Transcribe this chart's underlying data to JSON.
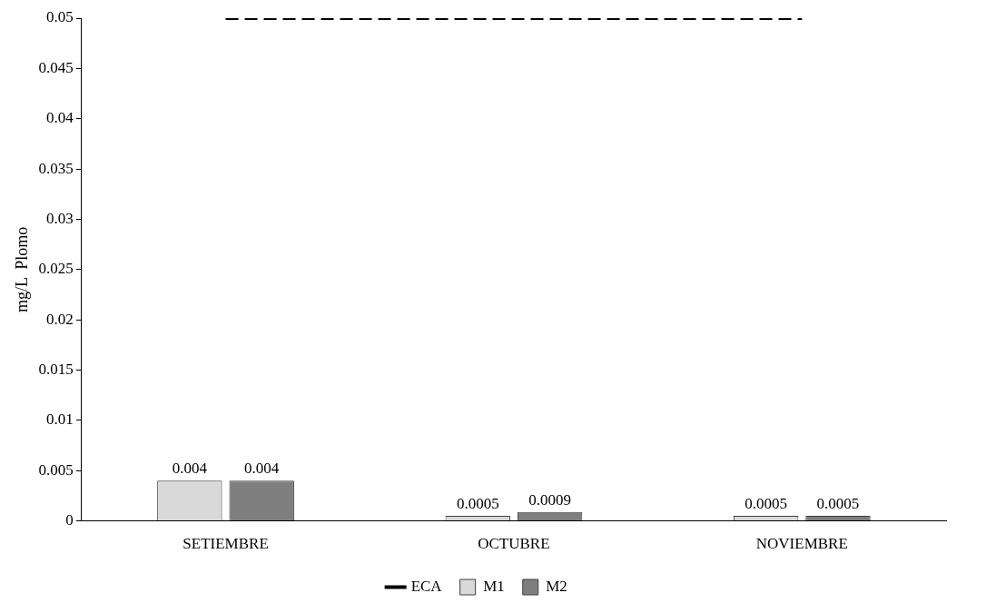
{
  "chart_data": {
    "type": "bar",
    "ylabel": "mg/L  Plomo",
    "categories": [
      "SETIEMBRE",
      "OCTUBRE",
      "NOVIEMBRE"
    ],
    "series": [
      {
        "name": "M1",
        "color": "#d9d9d9",
        "values": [
          0.004,
          0.0005,
          0.0005
        ],
        "value_labels": [
          "0.004",
          "0.0005",
          "0.0005"
        ]
      },
      {
        "name": "M2",
        "color": "#7f7f7f",
        "values": [
          0.004,
          0.0009,
          0.0005
        ],
        "value_labels": [
          "0.004",
          "0.0009",
          "0.0005"
        ]
      },
      {
        "name": "ECA",
        "type": "line",
        "color": "#000000",
        "line_style": "dashed",
        "marker": "none",
        "values": [
          0.05,
          0.05,
          0.05
        ]
      }
    ],
    "ylim": [
      0,
      0.05
    ],
    "yticks": [
      0,
      0.005,
      0.01,
      0.015,
      0.02,
      0.025,
      0.03,
      0.035,
      0.04,
      0.045,
      0.05
    ],
    "grid": false,
    "legend": "bottom"
  }
}
